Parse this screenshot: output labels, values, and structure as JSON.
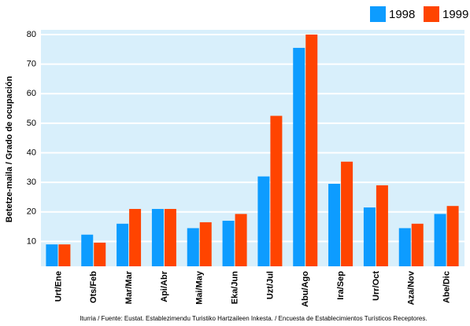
{
  "chart_data": {
    "type": "bar",
    "y_label": "Betetze-maila / Grado de ocupación",
    "source": "Iturria / Fuente: Eustat. Establezimendu Turistiko Hartzaileen Inkesta. / Encuesta de Establecimientos Turísticos Receptores.",
    "categories": [
      "Urt/Ene",
      "Ots/Feb",
      "Mar/Mar",
      "Api/Abr",
      "Mai/May",
      "Eka/Jun",
      "Uzt/Jul",
      "Abu/Ago",
      "Ira/Sep",
      "Urr/Oct",
      "Aza/Nov",
      "Abe/Dic"
    ],
    "series": [
      {
        "name": "1998",
        "color": "#0d9cff",
        "values": [
          9,
          12.3,
          16,
          21,
          14.5,
          17,
          32,
          75.5,
          29.5,
          21.5,
          14.5,
          19.3
        ]
      },
      {
        "name": "1999",
        "color": "#ff4400",
        "values": [
          9,
          9.6,
          21,
          21,
          16.5,
          19.3,
          52.5,
          80,
          37,
          29,
          16,
          22
        ]
      }
    ],
    "ylim": [
      0,
      80
    ],
    "yticks": [
      10,
      20,
      30,
      40,
      50,
      60,
      70,
      80
    ],
    "grid": true,
    "legend": "top-right"
  }
}
